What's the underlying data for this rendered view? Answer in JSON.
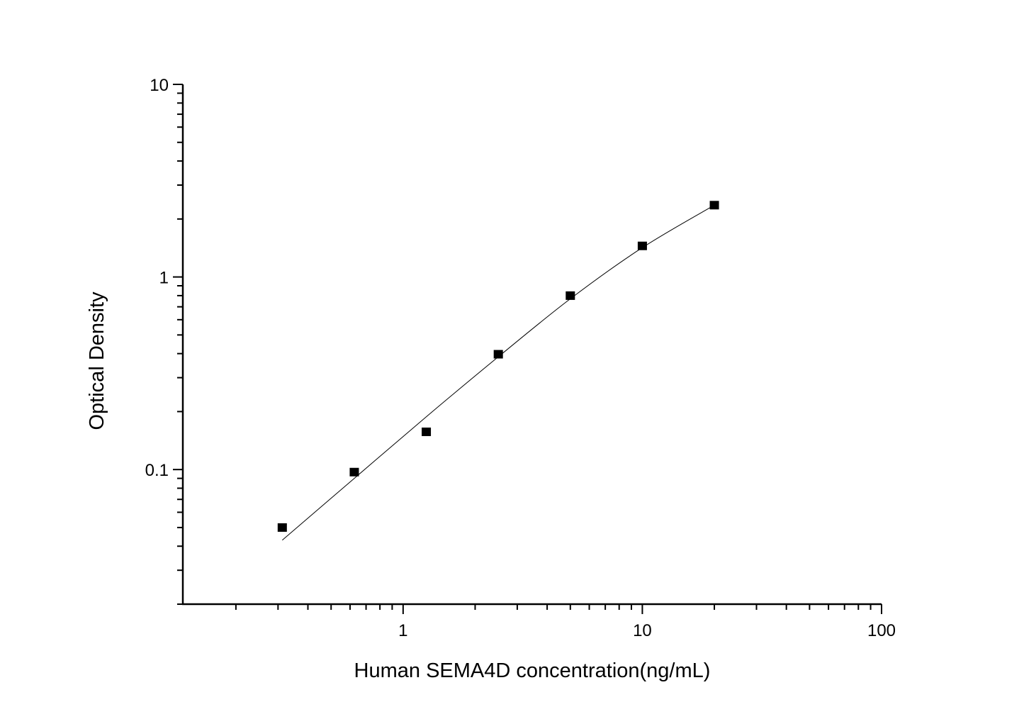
{
  "chart_data": {
    "type": "scatter",
    "title": "",
    "xlabel": "Human SEMA4D concentration(ng/mL)",
    "ylabel": "Optical Density",
    "x_scale": "log",
    "y_scale": "log",
    "xlim": [
      0.12,
      100
    ],
    "ylim": [
      0.02,
      10
    ],
    "x_ticks": [
      {
        "value": 1,
        "label": "1"
      },
      {
        "value": 10,
        "label": "10"
      },
      {
        "value": 100,
        "label": "100"
      }
    ],
    "y_ticks": [
      {
        "value": 0.1,
        "label": "0.1"
      },
      {
        "value": 1,
        "label": "1"
      },
      {
        "value": 10,
        "label": "10"
      }
    ],
    "grid": false,
    "marker": "square",
    "color": "#000000",
    "points": {
      "x": [
        0.3125,
        0.625,
        1.25,
        2.5,
        5,
        10,
        20
      ],
      "y": [
        0.05,
        0.097,
        0.157,
        0.397,
        0.8,
        1.45,
        2.36
      ]
    },
    "fit_curve": {
      "x": [
        0.3125,
        0.625,
        1.25,
        2.5,
        5,
        10,
        20
      ],
      "y": [
        0.043,
        0.09,
        0.188,
        0.385,
        0.77,
        1.42,
        2.36
      ]
    }
  }
}
